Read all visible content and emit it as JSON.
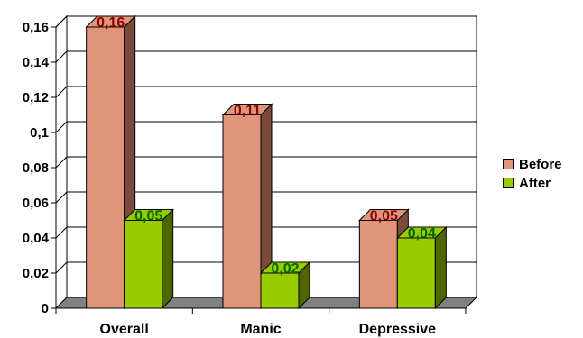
{
  "chart_data": {
    "type": "bar",
    "categories": [
      "Overall",
      "Manic",
      "Depressive"
    ],
    "series": [
      {
        "name": "Before",
        "values": [
          0.16,
          0.11,
          0.05
        ],
        "labels": [
          "0,16",
          "0,11",
          "0,05"
        ],
        "color": "#E0957A",
        "side_color": "#7A4A3C",
        "label_color": "#8B0000"
      },
      {
        "name": "After",
        "values": [
          0.05,
          0.02,
          0.04
        ],
        "labels": [
          "0,05",
          "0,02",
          "0,04"
        ],
        "color": "#99CC00",
        "side_color": "#4D6600",
        "label_color": "#006400"
      }
    ],
    "y_ticks": [
      "0",
      "0,02",
      "0,04",
      "0,06",
      "0,08",
      "0,1",
      "0,12",
      "0,14",
      "0,16"
    ],
    "ylim": [
      0,
      0.16
    ],
    "grid": true,
    "legend_position": "right"
  }
}
